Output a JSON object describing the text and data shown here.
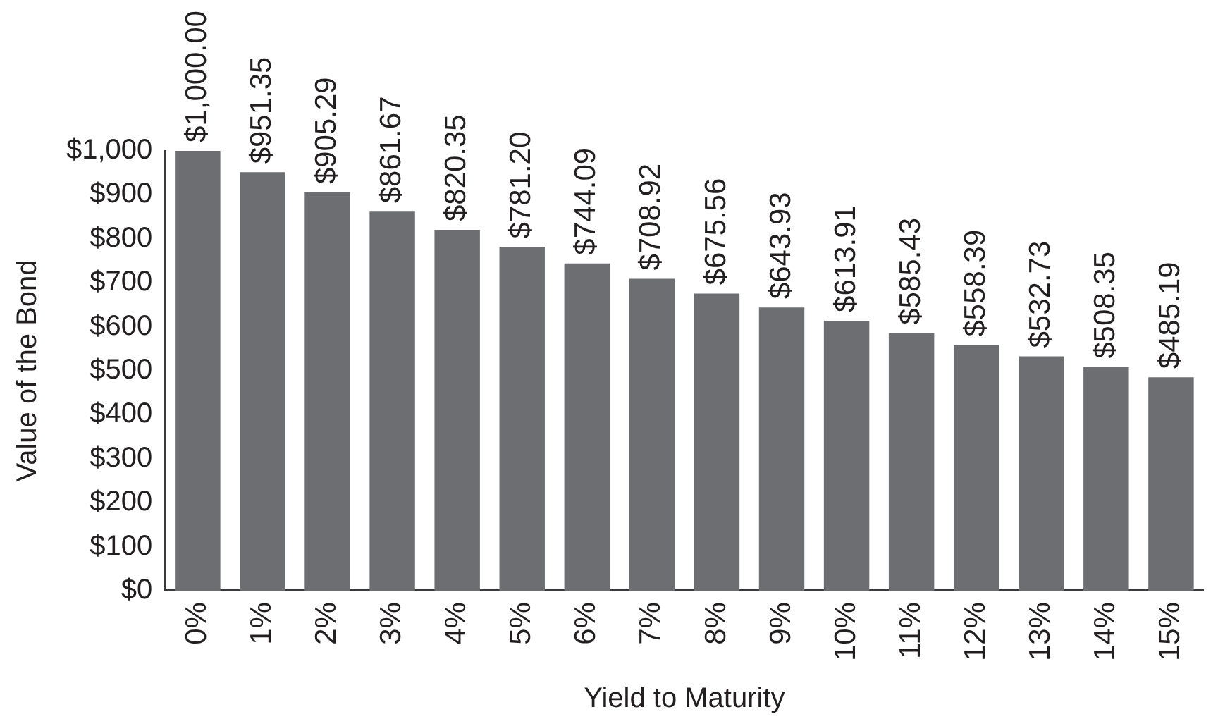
{
  "chart_data": {
    "type": "bar",
    "xlabel": "Yield to Maturity",
    "ylabel": "Value of the Bond",
    "categories": [
      "0%",
      "1%",
      "2%",
      "3%",
      "4%",
      "5%",
      "6%",
      "7%",
      "8%",
      "9%",
      "10%",
      "11%",
      "12%",
      "13%",
      "14%",
      "15%"
    ],
    "values": [
      1000.0,
      951.35,
      905.29,
      861.67,
      820.35,
      781.2,
      744.09,
      708.92,
      675.56,
      643.93,
      613.91,
      585.43,
      558.39,
      532.73,
      508.35,
      485.19
    ],
    "value_labels": [
      "$1,000.00",
      "$951.35",
      "$905.29",
      "$861.67",
      "$820.35",
      "$781.20",
      "$744.09",
      "$708.92",
      "$675.56",
      "$643.93",
      "$613.91",
      "$585.43",
      "$558.39",
      "$532.73",
      "$508.35",
      "$485.19"
    ],
    "color": "#6d6e71",
    "ylim": [
      0,
      1000
    ],
    "yticks": [
      {
        "value": 0,
        "label": "$0"
      },
      {
        "value": 100,
        "label": "$100"
      },
      {
        "value": 200,
        "label": "$200"
      },
      {
        "value": 300,
        "label": "$300"
      },
      {
        "value": 400,
        "label": "$400"
      },
      {
        "value": 500,
        "label": "$500"
      },
      {
        "value": 600,
        "label": "$600"
      },
      {
        "value": 700,
        "label": "$700"
      },
      {
        "value": 800,
        "label": "$800"
      },
      {
        "value": 900,
        "label": "$900"
      },
      {
        "value": 1000,
        "label": "$1,000"
      }
    ]
  }
}
